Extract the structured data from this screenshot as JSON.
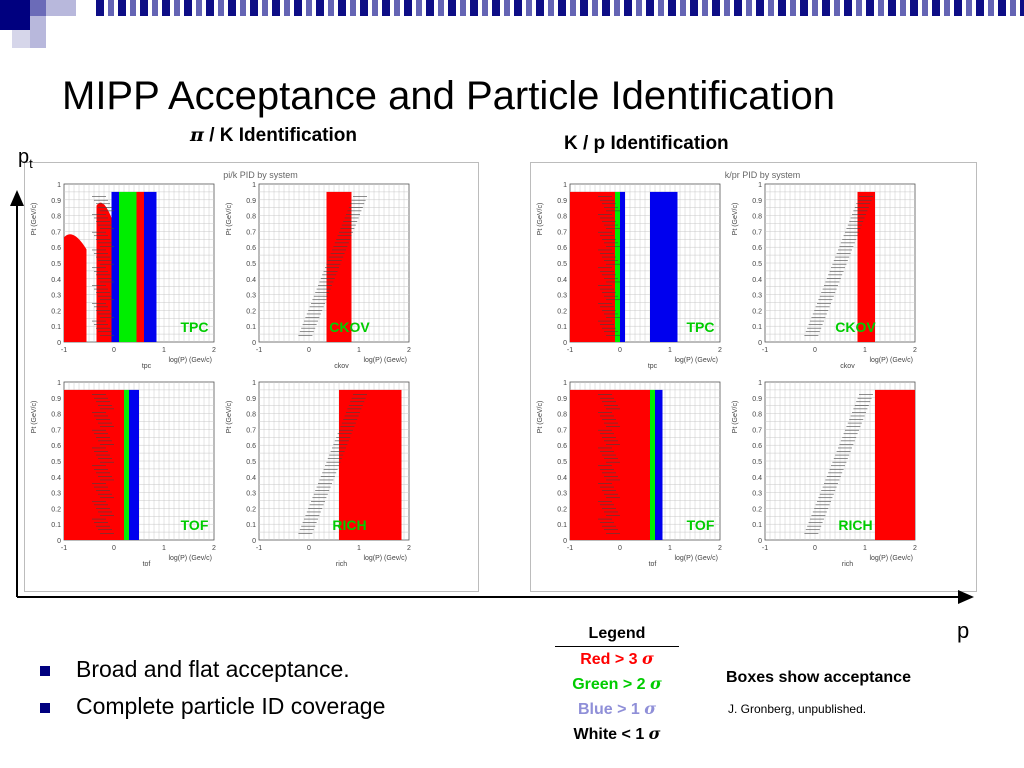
{
  "slide": {
    "title": "MIPP Acceptance and Particle Identification",
    "left_heading_symbol": "π",
    "left_heading": " / K Identification",
    "right_heading": "K / p Identification",
    "axis_y_label": "p",
    "axis_y_sub": "t",
    "axis_x_label": "p",
    "bullets": [
      "Broad and flat acceptance.",
      "Complete particle ID coverage"
    ],
    "legend": {
      "title": "Legend",
      "items": [
        {
          "text": "Red > 3 ",
          "sigma": "σ",
          "color": "#ff0000"
        },
        {
          "text": "Green > 2 ",
          "sigma": "σ",
          "color": "#00cc00"
        },
        {
          "text": "Blue > 1 ",
          "sigma": "σ",
          "color": "#8f8fd8"
        },
        {
          "text": "White < 1 ",
          "sigma": "σ",
          "color": "#000000"
        }
      ]
    },
    "note": "Boxes show acceptance",
    "credit": "J. Gronberg, unpublished."
  },
  "colors": {
    "red": "#ff0000",
    "green": "#00ee00",
    "blue": "#0000ee",
    "label_green": "#00cc00",
    "accent": "#00007f"
  },
  "chart_data": [
    {
      "type": "heatmap",
      "title": "pi/k PID by system",
      "x_ticks": [
        "-1",
        "0",
        "1",
        "2"
      ],
      "y_ticks": [
        "0",
        "0.1",
        "0.2",
        "0.3",
        "0.4",
        "0.5",
        "0.6",
        "0.7",
        "0.8",
        "0.9",
        "1"
      ],
      "xlim": [
        -1,
        2
      ],
      "ylim": [
        0,
        1
      ],
      "panels": [
        {
          "label": "TPC",
          "name": "tpc",
          "ylabel": "Pt (GeV/c)",
          "xlabel": "log(P) (Gev/c)",
          "regions": [
            {
              "color": "red",
              "shape": "band",
              "x0": -1,
              "x1": -0.55,
              "y1": 0.7
            },
            {
              "color": "red",
              "shape": "band",
              "x0": -0.35,
              "x1": -0.05,
              "y1": 0.9
            },
            {
              "color": "red",
              "shape": "rect",
              "x0": 0.45,
              "x1": 0.6,
              "y1": 0.95
            },
            {
              "color": "green",
              "shape": "rect",
              "x0": 0.1,
              "x1": 0.45,
              "y1": 0.95
            },
            {
              "color": "blue",
              "shape": "rect",
              "x0": -0.05,
              "x1": 0.1,
              "y1": 0.95
            },
            {
              "color": "blue",
              "shape": "rect",
              "x0": 0.6,
              "x1": 0.85,
              "y1": 0.95
            }
          ]
        },
        {
          "label": "CKOV",
          "name": "ckov",
          "ylabel": "Pt (GeV/c)",
          "xlabel": "log(P) (Gev/c)",
          "regions": [
            {
              "color": "red",
              "shape": "rect",
              "x0": 0.35,
              "x1": 0.85,
              "y1": 0.95
            }
          ]
        },
        {
          "label": "TOF",
          "name": "tof",
          "ylabel": "Pt (GeV/c)",
          "xlabel": "log(P) (Gev/c)",
          "regions": [
            {
              "color": "red",
              "shape": "rect",
              "x0": -1,
              "x1": 0.2,
              "y1": 0.95
            },
            {
              "color": "green",
              "shape": "rect",
              "x0": 0.2,
              "x1": 0.3,
              "y1": 0.95
            },
            {
              "color": "blue",
              "shape": "rect",
              "x0": 0.3,
              "x1": 0.5,
              "y1": 0.95
            }
          ]
        },
        {
          "label": "RICH",
          "name": "rich",
          "ylabel": "Pt (GeV/c)",
          "xlabel": "log(P) (Gev/c)",
          "regions": [
            {
              "color": "red",
              "shape": "rect",
              "x0": 0.6,
              "x1": 1.85,
              "y1": 0.95
            }
          ]
        }
      ]
    },
    {
      "type": "heatmap",
      "title": "k/pr PID by system",
      "x_ticks": [
        "-1",
        "0",
        "1",
        "2"
      ],
      "y_ticks": [
        "0",
        "0.1",
        "0.2",
        "0.3",
        "0.4",
        "0.5",
        "0.6",
        "0.7",
        "0.8",
        "0.9",
        "1"
      ],
      "xlim": [
        -1,
        2
      ],
      "ylim": [
        0,
        1
      ],
      "panels": [
        {
          "label": "TPC",
          "name": "tpc",
          "ylabel": "Pt (GeV/c)",
          "xlabel": "log(P) (Gev/c)",
          "regions": [
            {
              "color": "red",
              "shape": "rect",
              "x0": -1,
              "x1": -0.1,
              "y1": 0.95
            },
            {
              "color": "green",
              "shape": "rect",
              "x0": -0.1,
              "x1": 0.0,
              "y1": 0.95
            },
            {
              "color": "blue",
              "shape": "rect",
              "x0": 0.0,
              "x1": 0.1,
              "y1": 0.95
            },
            {
              "color": "blue",
              "shape": "rect",
              "x0": 0.6,
              "x1": 1.15,
              "y1": 0.95
            }
          ]
        },
        {
          "label": "CKOV",
          "name": "ckov",
          "ylabel": "Pt (GeV/c)",
          "xlabel": "log(P) (Gev/c)",
          "regions": [
            {
              "color": "red",
              "shape": "rect",
              "x0": 0.85,
              "x1": 1.2,
              "y1": 0.95
            }
          ]
        },
        {
          "label": "TOF",
          "name": "tof",
          "ylabel": "Pt (GeV/c)",
          "xlabel": "log(P) (Gev/c)",
          "regions": [
            {
              "color": "red",
              "shape": "rect",
              "x0": -1,
              "x1": 0.6,
              "y1": 0.95
            },
            {
              "color": "green",
              "shape": "rect",
              "x0": 0.6,
              "x1": 0.7,
              "y1": 0.95
            },
            {
              "color": "blue",
              "shape": "rect",
              "x0": 0.7,
              "x1": 0.85,
              "y1": 0.95
            }
          ]
        },
        {
          "label": "RICH",
          "name": "rich",
          "ylabel": "Pt (GeV/c)",
          "xlabel": "log(P) (Gev/c)",
          "regions": [
            {
              "color": "red",
              "shape": "rect",
              "x0": 1.2,
              "x1": 2.0,
              "y1": 0.95
            }
          ]
        }
      ]
    }
  ]
}
